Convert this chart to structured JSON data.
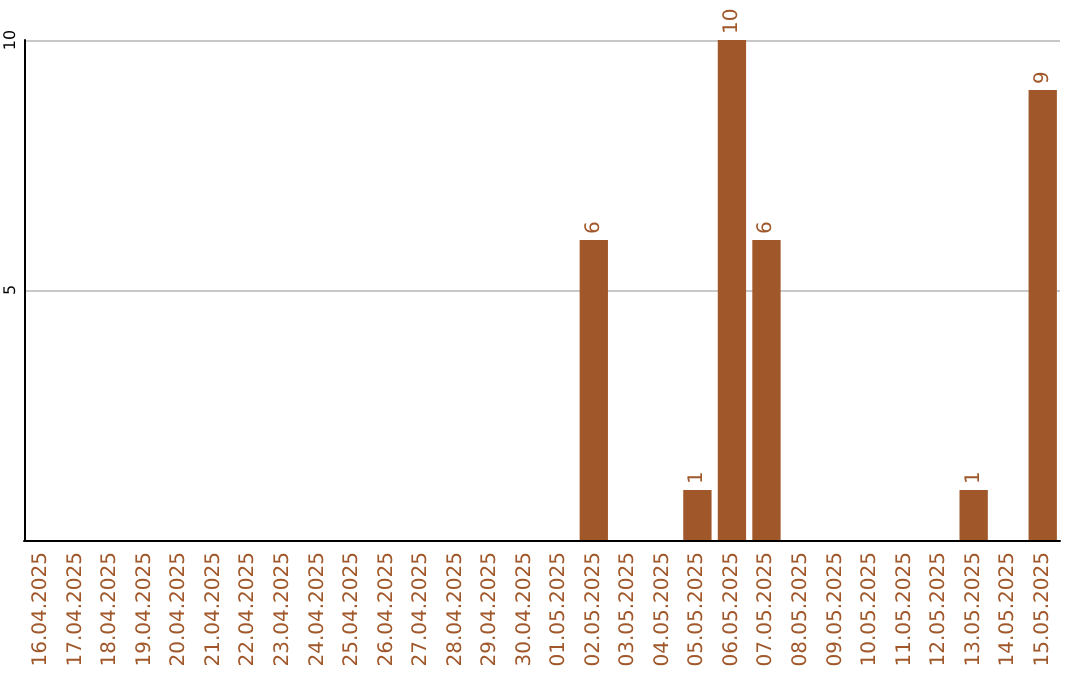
{
  "chart_data": {
    "type": "bar",
    "categories": [
      "16.04.2025",
      "17.04.2025",
      "18.04.2025",
      "19.04.2025",
      "20.04.2025",
      "21.04.2025",
      "22.04.2025",
      "23.04.2025",
      "24.04.2025",
      "25.04.2025",
      "26.04.2025",
      "27.04.2025",
      "28.04.2025",
      "29.04.2025",
      "30.04.2025",
      "01.05.2025",
      "02.05.2025",
      "03.05.2025",
      "04.05.2025",
      "05.05.2025",
      "06.05.2025",
      "07.05.2025",
      "08.05.2025",
      "09.05.2025",
      "10.05.2025",
      "11.05.2025",
      "12.05.2025",
      "13.05.2025",
      "14.05.2025",
      "15.05.2025"
    ],
    "values": [
      0,
      0,
      0,
      0,
      0,
      0,
      0,
      0,
      0,
      0,
      0,
      0,
      0,
      0,
      0,
      0,
      6,
      0,
      0,
      1,
      10,
      6,
      0,
      0,
      0,
      0,
      0,
      1,
      0,
      9
    ],
    "value_labels": [
      null,
      null,
      null,
      null,
      null,
      null,
      null,
      null,
      null,
      null,
      null,
      null,
      null,
      null,
      null,
      null,
      "6",
      null,
      null,
      "1",
      "10",
      "6",
      null,
      null,
      null,
      null,
      null,
      "1",
      null,
      "9"
    ],
    "color": "#a0572a",
    "ylim": [
      0,
      10
    ],
    "yticks": [
      {
        "value": 0,
        "label": null
      },
      5,
      10
    ],
    "grid": "y"
  }
}
